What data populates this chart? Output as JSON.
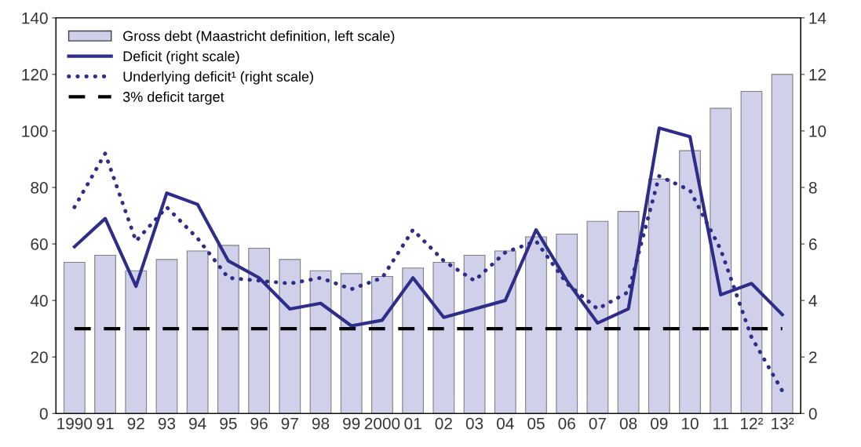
{
  "chart_data": {
    "type": "bar",
    "categories": [
      "1990",
      "91",
      "92",
      "93",
      "94",
      "95",
      "96",
      "97",
      "98",
      "99",
      "2000",
      "01",
      "02",
      "03",
      "04",
      "05",
      "06",
      "07",
      "08",
      "09",
      "10",
      "11",
      "12²",
      "13²"
    ],
    "series": [
      {
        "name": "Gross debt (Maastricht definition, left scale)",
        "color": "#d0d0ea",
        "values": [
          53.5,
          56,
          50.5,
          54.5,
          57.5,
          59.5,
          58.5,
          54.5,
          50.5,
          49.5,
          48.5,
          51.5,
          53.5,
          56,
          57.5,
          62.5,
          63.5,
          68,
          71.5,
          83,
          93,
          108,
          114,
          120
        ]
      },
      {
        "name": "Deficit (right scale)",
        "type": "line",
        "axis": "y2",
        "color": "#2e2e8a",
        "line_style": "solid",
        "values": [
          5.9,
          6.9,
          4.5,
          7.8,
          7.4,
          5.4,
          4.8,
          3.7,
          3.9,
          3.1,
          3.3,
          4.8,
          3.4,
          3.7,
          4.0,
          6.5,
          4.7,
          3.2,
          3.7,
          10.1,
          9.8,
          4.2,
          4.6,
          3.5
        ]
      },
      {
        "name": "Underlying deficit¹ (right scale)",
        "type": "line",
        "axis": "y2",
        "color": "#2e2e8a",
        "line_style": "dotted",
        "values": [
          7.3,
          9.2,
          6.1,
          7.3,
          6.2,
          4.8,
          4.7,
          4.6,
          4.8,
          4.4,
          4.8,
          6.5,
          5.4,
          4.7,
          5.7,
          6.1,
          4.6,
          3.7,
          4.3,
          8.4,
          7.9,
          5.8,
          2.7,
          0.8
        ]
      }
    ],
    "ref_lines": [
      {
        "axis": "y2",
        "value": 3,
        "label": "3% deficit target",
        "color": "#000000",
        "line_style": "dashed"
      }
    ],
    "ylim": [
      0,
      140
    ],
    "yticks": [
      0,
      20,
      40,
      60,
      80,
      100,
      120,
      140
    ],
    "y2lim": [
      0,
      14
    ],
    "y2ticks": [
      0,
      2,
      4,
      6,
      8,
      10,
      12,
      14
    ],
    "legend": "top left",
    "grid": false
  }
}
